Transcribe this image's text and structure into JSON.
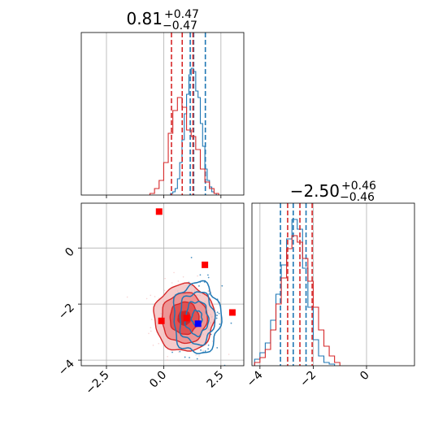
{
  "chart_data": [
    {
      "type": "histogram",
      "panel": "top-left",
      "title": {
        "value": "0.81",
        "plus": "+0.47",
        "minus": "−0.47"
      },
      "xlim": [
        -3.6,
        3.5
      ],
      "ylim": [
        0,
        1.0
      ],
      "grid": true,
      "series": [
        {
          "color": "#1f77b4",
          "edges": [
            0.3,
            0.4,
            0.5,
            0.6,
            0.7,
            0.8,
            0.9,
            1.0,
            1.1,
            1.2,
            1.3,
            1.4,
            1.5,
            1.6,
            1.7,
            1.8,
            1.9,
            2.0,
            2.1,
            2.2,
            2.3
          ],
          "heights": [
            0.01,
            0.02,
            0.04,
            0.1,
            0.2,
            0.34,
            0.5,
            0.62,
            0.74,
            0.78,
            0.76,
            0.64,
            0.6,
            0.44,
            0.3,
            0.16,
            0.09,
            0.05,
            0.02,
            0.01
          ],
          "quantiles": [
            1.16,
            1.31,
            1.82
          ]
        },
        {
          "color": "#d62728",
          "edges": [
            -0.6,
            -0.4,
            -0.2,
            0.0,
            0.2,
            0.4,
            0.6,
            0.8,
            1.0,
            1.2,
            1.4,
            1.6,
            1.8,
            2.0,
            2.2,
            2.4
          ],
          "heights": [
            0.01,
            0.04,
            0.09,
            0.2,
            0.38,
            0.52,
            0.6,
            0.54,
            0.4,
            0.36,
            0.28,
            0.16,
            0.08,
            0.04,
            0.01
          ],
          "quantiles": [
            0.34,
            0.81,
            1.28
          ]
        }
      ]
    },
    {
      "type": "scatter-contour",
      "panel": "bottom-left",
      "xlim": [
        -3.6,
        3.5
      ],
      "ylim": [
        -4.2,
        1.6
      ],
      "xticks": [
        "−2.5",
        "0.0",
        "2.5"
      ],
      "yticks": [
        "−4",
        "−2",
        "0"
      ],
      "grid": true,
      "red_markers": [
        [
          -0.2,
          1.3
        ],
        [
          1.8,
          -0.6
        ],
        [
          3.0,
          -2.3
        ],
        [
          -0.1,
          -2.6
        ],
        [
          1.0,
          -2.5
        ]
      ],
      "blue_markers": [
        [
          1.5,
          -2.7
        ]
      ],
      "red_contour": {
        "center": [
          0.9,
          -2.5
        ],
        "sigma": [
          0.55,
          0.5
        ]
      },
      "blue_contour": {
        "center": [
          1.45,
          -2.5
        ],
        "sigma": [
          0.45,
          0.55
        ]
      }
    },
    {
      "type": "histogram",
      "panel": "bottom-right",
      "title": {
        "value": "−2.50",
        "plus": "+0.46",
        "minus": "−0.46"
      },
      "xlim": [
        -4.3,
        1.8
      ],
      "ylim": [
        0,
        1.0
      ],
      "xticks": [
        "−4",
        "−2",
        "0"
      ],
      "grid": true,
      "series": [
        {
          "color": "#1f77b4",
          "edges": [
            -4.2,
            -4.0,
            -3.8,
            -3.6,
            -3.4,
            -3.2,
            -3.0,
            -2.8,
            -2.6,
            -2.4,
            -2.2,
            -2.0,
            -1.8,
            -1.6,
            -1.4,
            -1.2
          ],
          "heights": [
            0.04,
            0.08,
            0.14,
            0.28,
            0.44,
            0.62,
            0.78,
            0.9,
            0.84,
            0.6,
            0.36,
            0.16,
            0.06,
            0.02,
            0.01
          ],
          "quantiles": [
            -3.23,
            -2.75,
            -2.27
          ]
        },
        {
          "color": "#d62728",
          "edges": [
            -4.2,
            -4.0,
            -3.8,
            -3.6,
            -3.4,
            -3.2,
            -3.0,
            -2.8,
            -2.6,
            -2.4,
            -2.2,
            -2.0,
            -1.8,
            -1.6,
            -1.4,
            -1.2,
            -1.0
          ],
          "heights": [
            0.02,
            0.05,
            0.1,
            0.22,
            0.38,
            0.54,
            0.72,
            0.8,
            0.76,
            0.66,
            0.52,
            0.36,
            0.22,
            0.12,
            0.06,
            0.02
          ],
          "quantiles": [
            -2.96,
            -2.5,
            -2.04
          ]
        }
      ]
    }
  ]
}
